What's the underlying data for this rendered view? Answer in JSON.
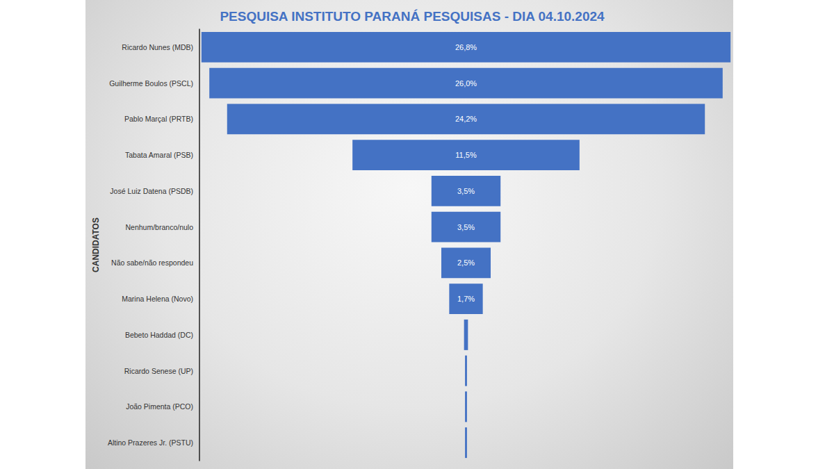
{
  "chart_data": {
    "type": "funnel",
    "title": "PESQUISA INSTITUTO PARANÁ PESQUISAS - DIA 04.10.2024",
    "y_label": "CANDIDATOS",
    "orientation": "horizontal",
    "categories": [
      "Ricardo Nunes (MDB)",
      "Guilherme Boulos (PSCL)",
      "Pablo Marçal (PRTB)",
      "Tabata Amaral (PSB)",
      "José Luiz Datena (PSDB)",
      "Nenhum/branco/nulo",
      "Não sabe/não respondeu",
      "Marina Helena (Novo)",
      "Bebeto Haddad (DC)",
      "Ricardo Senese (UP)",
      "João Pimenta (PCO)",
      "Altino Prazeres Jr. (PSTU)"
    ],
    "values": [
      26.8,
      26.0,
      24.2,
      11.5,
      3.5,
      3.5,
      2.5,
      1.7,
      0.2,
      0.1,
      0.1,
      0.1
    ],
    "value_labels": [
      "26,8%",
      "26,0%",
      "24,2%",
      "11,5%",
      "3,5%",
      "3,5%",
      "2,5%",
      "1,7%",
      null,
      null,
      null,
      null
    ],
    "color": "#4472c4",
    "xlim": [
      0,
      27
    ],
    "grid": false,
    "data_labels": true,
    "tick_labels": "y"
  }
}
